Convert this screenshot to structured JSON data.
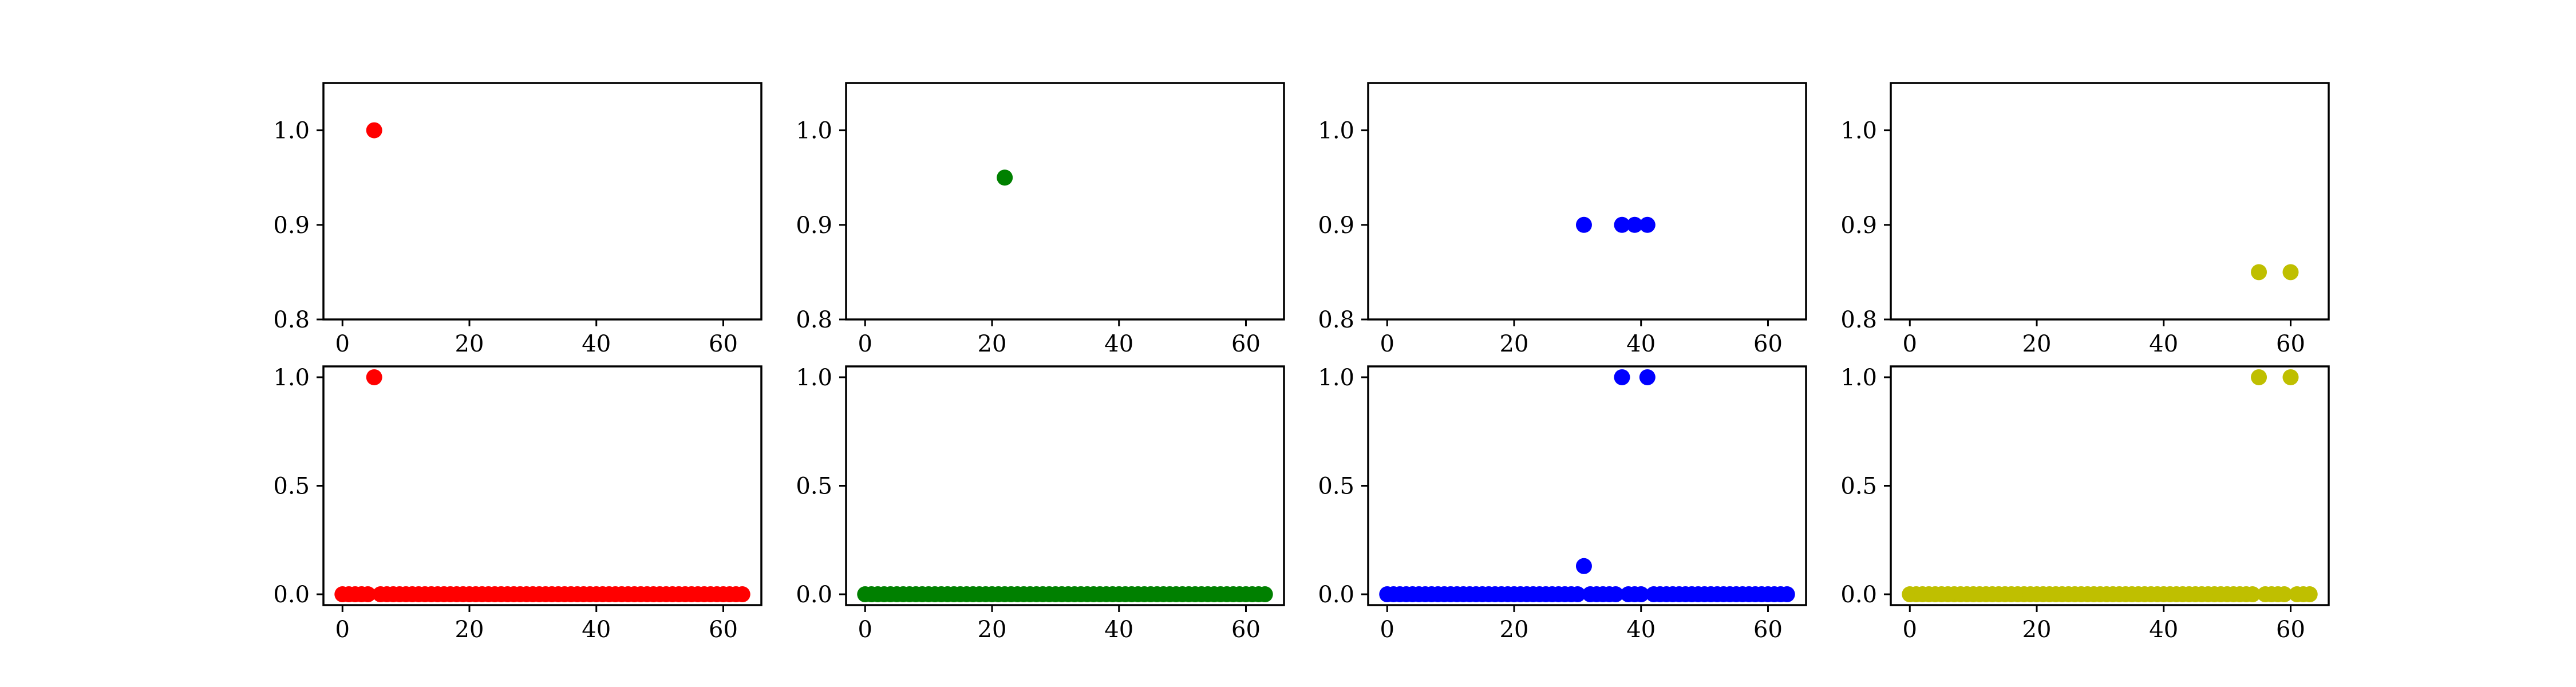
{
  "chart_data": [
    {
      "type": "scatter",
      "row": 0,
      "col": 0,
      "color": "#ff0000",
      "ylim": [
        0.8,
        1.05
      ],
      "xlim": [
        -3,
        66
      ],
      "xticks": [
        0,
        20,
        40,
        60
      ],
      "yticks": [
        0.8,
        0.9,
        1.0
      ],
      "ytick_labels": [
        "0.8",
        "0.9",
        "1.0"
      ],
      "points": [
        [
          5,
          1.0
        ]
      ]
    },
    {
      "type": "scatter",
      "row": 0,
      "col": 1,
      "color": "#008000",
      "ylim": [
        0.8,
        1.05
      ],
      "xlim": [
        -3,
        66
      ],
      "xticks": [
        0,
        20,
        40,
        60
      ],
      "yticks": [
        0.8,
        0.9,
        1.0
      ],
      "ytick_labels": [
        "0.8",
        "0.9",
        "1.0"
      ],
      "points": [
        [
          22,
          0.95
        ]
      ]
    },
    {
      "type": "scatter",
      "row": 0,
      "col": 2,
      "color": "#0000ff",
      "ylim": [
        0.8,
        1.05
      ],
      "xlim": [
        -3,
        66
      ],
      "xticks": [
        0,
        20,
        40,
        60
      ],
      "yticks": [
        0.8,
        0.9,
        1.0
      ],
      "ytick_labels": [
        "0.8",
        "0.9",
        "1.0"
      ],
      "points": [
        [
          31,
          0.9
        ],
        [
          37,
          0.9
        ],
        [
          39,
          0.9
        ],
        [
          41,
          0.9
        ]
      ]
    },
    {
      "type": "scatter",
      "row": 0,
      "col": 3,
      "color": "#bfbf00",
      "ylim": [
        0.8,
        1.05
      ],
      "xlim": [
        -3,
        66
      ],
      "xticks": [
        0,
        20,
        40,
        60
      ],
      "yticks": [
        0.8,
        0.9,
        1.0
      ],
      "ytick_labels": [
        "0.8",
        "0.9",
        "1.0"
      ],
      "points": [
        [
          55,
          0.85
        ],
        [
          60,
          0.85
        ]
      ]
    },
    {
      "type": "scatter",
      "row": 1,
      "col": 0,
      "color": "#ff0000",
      "ylim": [
        -0.05,
        1.05
      ],
      "xlim": [
        -3,
        66
      ],
      "xticks": [
        0,
        20,
        40,
        60
      ],
      "yticks": [
        0.0,
        0.5,
        1.0
      ],
      "ytick_labels": [
        "0.0",
        "0.5",
        "1.0"
      ],
      "x_range": [
        0,
        63
      ],
      "baseline": 0.0,
      "skip_baseline_at": [
        5
      ],
      "points": [
        [
          5,
          1.0
        ]
      ]
    },
    {
      "type": "scatter",
      "row": 1,
      "col": 1,
      "color": "#008000",
      "ylim": [
        -0.05,
        1.05
      ],
      "xlim": [
        -3,
        66
      ],
      "xticks": [
        0,
        20,
        40,
        60
      ],
      "yticks": [
        0.0,
        0.5,
        1.0
      ],
      "ytick_labels": [
        "0.0",
        "0.5",
        "1.0"
      ],
      "x_range": [
        0,
        63
      ],
      "baseline": 0.0,
      "skip_baseline_at": [],
      "points": []
    },
    {
      "type": "scatter",
      "row": 1,
      "col": 2,
      "color": "#0000ff",
      "ylim": [
        -0.05,
        1.05
      ],
      "xlim": [
        -3,
        66
      ],
      "xticks": [
        0,
        20,
        40,
        60
      ],
      "yticks": [
        0.0,
        0.5,
        1.0
      ],
      "ytick_labels": [
        "0.0",
        "0.5",
        "1.0"
      ],
      "x_range": [
        0,
        63
      ],
      "baseline": 0.0,
      "skip_baseline_at": [
        31,
        37,
        41
      ],
      "points": [
        [
          31,
          0.13
        ],
        [
          37,
          1.0
        ],
        [
          41,
          1.0
        ]
      ]
    },
    {
      "type": "scatter",
      "row": 1,
      "col": 3,
      "color": "#bfbf00",
      "ylim": [
        -0.05,
        1.05
      ],
      "xlim": [
        -3,
        66
      ],
      "xticks": [
        0,
        20,
        40,
        60
      ],
      "yticks": [
        0.0,
        0.5,
        1.0
      ],
      "ytick_labels": [
        "0.0",
        "0.5",
        "1.0"
      ],
      "x_range": [
        0,
        63
      ],
      "baseline": 0.0,
      "skip_baseline_at": [
        55,
        60
      ],
      "points": [
        [
          55,
          1.0
        ],
        [
          60,
          1.0
        ]
      ]
    }
  ]
}
